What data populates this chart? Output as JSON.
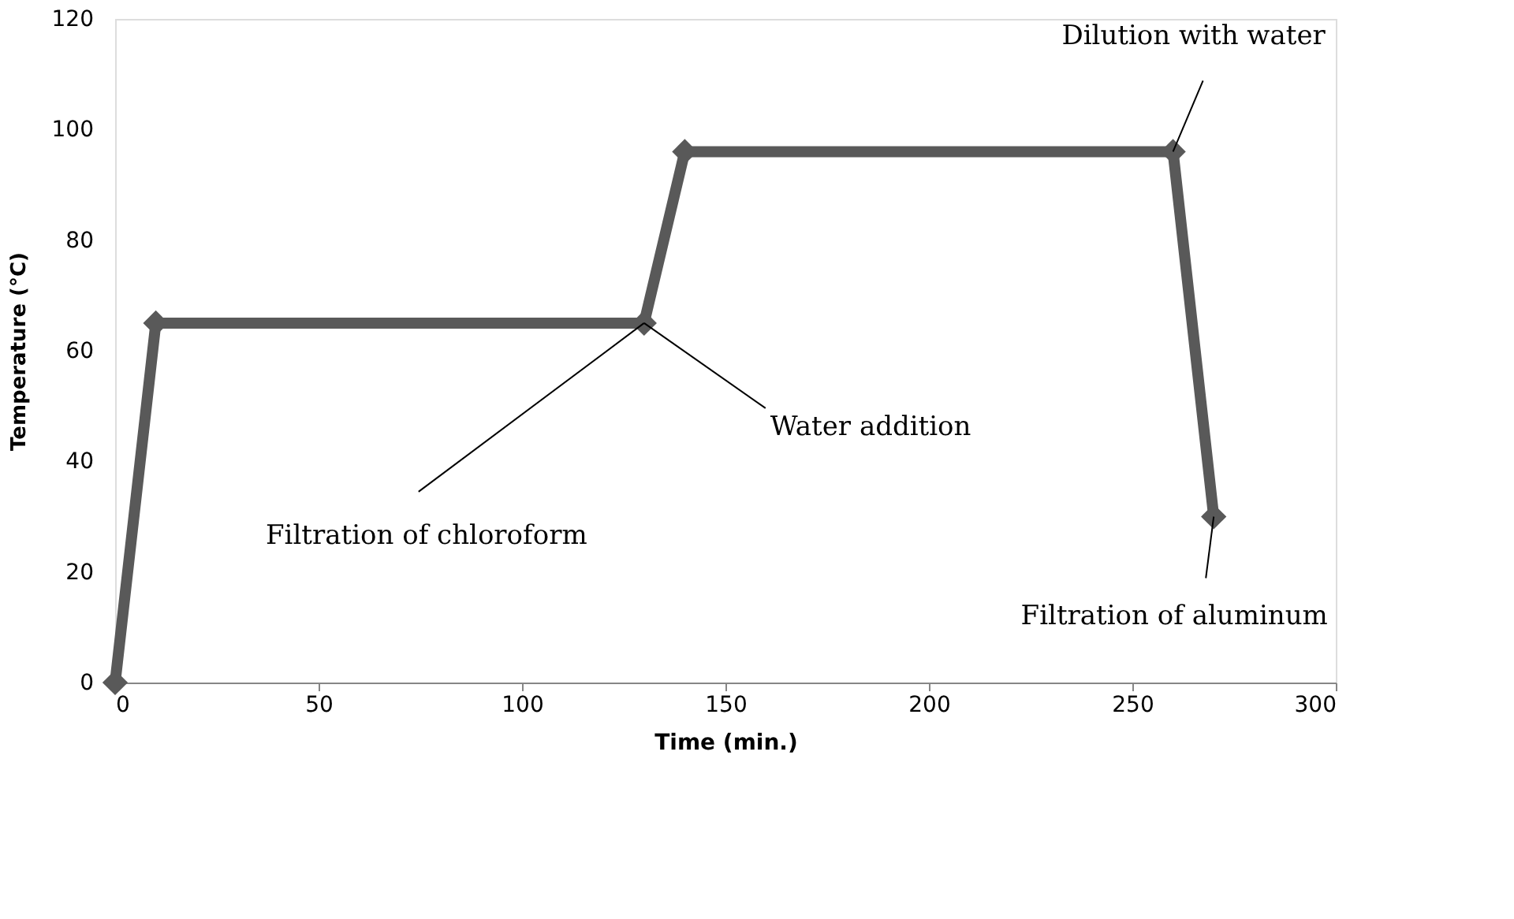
{
  "chart_data": {
    "type": "line",
    "xlabel": "Time (min.)",
    "ylabel": "Temperature (°C)",
    "x": [
      0,
      10,
      130,
      140,
      260,
      270
    ],
    "series": [
      {
        "color": "#595959",
        "values": [
          0,
          65,
          65,
          96,
          96,
          30
        ]
      }
    ],
    "xlim": [
      0,
      300
    ],
    "xticks": [
      0,
      50,
      100,
      150,
      200,
      250,
      300
    ],
    "ylim": [
      0,
      120
    ],
    "yticks": [
      0,
      20,
      40,
      60,
      80,
      100,
      120
    ],
    "marker": "diamond",
    "line_style": "solid",
    "grid": false,
    "annotations": [
      {
        "text": "Filtration of chloroform",
        "x": 130,
        "y": 65
      },
      {
        "text": "Water addition",
        "x": 130,
        "y": 65
      },
      {
        "text": "Dilution with water",
        "x": 260,
        "y": 96
      },
      {
        "text": "Filtration of aluminum",
        "x": 270,
        "y": 30
      }
    ]
  }
}
